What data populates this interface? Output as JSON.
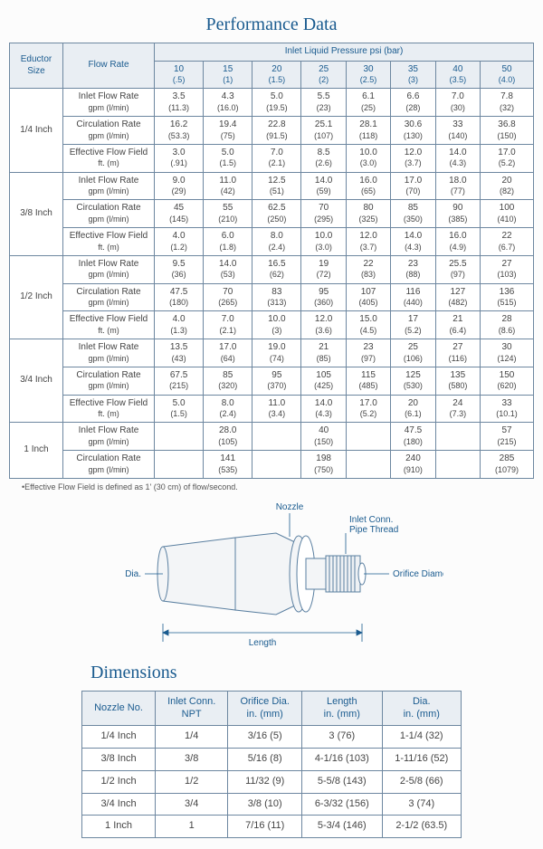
{
  "titles": {
    "performance": "Performance Data",
    "dimensions": "Dimensions"
  },
  "perf": {
    "col_headers": {
      "size": "Eductor\nSize",
      "flow": "Flow Rate",
      "pressure_group": "Inlet Liquid Pressure psi (bar)",
      "cols": [
        {
          "a": "10",
          "b": "(.5)"
        },
        {
          "a": "15",
          "b": "(1)"
        },
        {
          "a": "20",
          "b": "(1.5)"
        },
        {
          "a": "25",
          "b": "(2)"
        },
        {
          "a": "30",
          "b": "(2.5)"
        },
        {
          "a": "35",
          "b": "(3)"
        },
        {
          "a": "40",
          "b": "(3.5)"
        },
        {
          "a": "50",
          "b": "(4.0)"
        }
      ]
    },
    "row_labels": {
      "inlet": "Inlet Flow Rate",
      "inlet_sub": "gpm (l/min)",
      "circ": "Circulation Rate",
      "circ_sub": "gpm (l/min)",
      "eff": "Effective Flow Field",
      "eff_sub": "ft. (m)"
    },
    "groups": [
      {
        "size": "1/4 Inch",
        "inlet": [
          [
            "3.5",
            "(11.3)"
          ],
          [
            "4.3",
            "(16.0)"
          ],
          [
            "5.0",
            "(19.5)"
          ],
          [
            "5.5",
            "(23)"
          ],
          [
            "6.1",
            "(25)"
          ],
          [
            "6.6",
            "(28)"
          ],
          [
            "7.0",
            "(30)"
          ],
          [
            "7.8",
            "(32)"
          ]
        ],
        "circ": [
          [
            "16.2",
            "(53.3)"
          ],
          [
            "19.4",
            "(75)"
          ],
          [
            "22.8",
            "(91.5)"
          ],
          [
            "25.1",
            "(107)"
          ],
          [
            "28.1",
            "(118)"
          ],
          [
            "30.6",
            "(130)"
          ],
          [
            "33",
            "(140)"
          ],
          [
            "36.8",
            "(150)"
          ]
        ],
        "eff": [
          [
            "3.0",
            "(.91)"
          ],
          [
            "5.0",
            "(1.5)"
          ],
          [
            "7.0",
            "(2.1)"
          ],
          [
            "8.5",
            "(2.6)"
          ],
          [
            "10.0",
            "(3.0)"
          ],
          [
            "12.0",
            "(3.7)"
          ],
          [
            "14.0",
            "(4.3)"
          ],
          [
            "17.0",
            "(5.2)"
          ]
        ]
      },
      {
        "size": "3/8 Inch",
        "inlet": [
          [
            "9.0",
            "(29)"
          ],
          [
            "11.0",
            "(42)"
          ],
          [
            "12.5",
            "(51)"
          ],
          [
            "14.0",
            "(59)"
          ],
          [
            "16.0",
            "(65)"
          ],
          [
            "17.0",
            "(70)"
          ],
          [
            "18.0",
            "(77)"
          ],
          [
            "20",
            "(82)"
          ]
        ],
        "circ": [
          [
            "45",
            "(145)"
          ],
          [
            "55",
            "(210)"
          ],
          [
            "62.5",
            "(250)"
          ],
          [
            "70",
            "(295)"
          ],
          [
            "80",
            "(325)"
          ],
          [
            "85",
            "(350)"
          ],
          [
            "90",
            "(385)"
          ],
          [
            "100",
            "(410)"
          ]
        ],
        "eff": [
          [
            "4.0",
            "(1.2)"
          ],
          [
            "6.0",
            "(1.8)"
          ],
          [
            "8.0",
            "(2.4)"
          ],
          [
            "10.0",
            "(3.0)"
          ],
          [
            "12.0",
            "(3.7)"
          ],
          [
            "14.0",
            "(4.3)"
          ],
          [
            "16.0",
            "(4.9)"
          ],
          [
            "22",
            "(6.7)"
          ]
        ]
      },
      {
        "size": "1/2 Inch",
        "inlet": [
          [
            "9.5",
            "(36)"
          ],
          [
            "14.0",
            "(53)"
          ],
          [
            "16.5",
            "(62)"
          ],
          [
            "19",
            "(72)"
          ],
          [
            "22",
            "(83)"
          ],
          [
            "23",
            "(88)"
          ],
          [
            "25.5",
            "(97)"
          ],
          [
            "27",
            "(103)"
          ]
        ],
        "circ": [
          [
            "47.5",
            "(180)"
          ],
          [
            "70",
            "(265)"
          ],
          [
            "83",
            "(313)"
          ],
          [
            "95",
            "(360)"
          ],
          [
            "107",
            "(405)"
          ],
          [
            "116",
            "(440)"
          ],
          [
            "127",
            "(482)"
          ],
          [
            "136",
            "(515)"
          ]
        ],
        "eff": [
          [
            "4.0",
            "(1.3)"
          ],
          [
            "7.0",
            "(2.1)"
          ],
          [
            "10.0",
            "(3)"
          ],
          [
            "12.0",
            "(3.6)"
          ],
          [
            "15.0",
            "(4.5)"
          ],
          [
            "17",
            "(5.2)"
          ],
          [
            "21",
            "(6.4)"
          ],
          [
            "28",
            "(8.6)"
          ]
        ]
      },
      {
        "size": "3/4 Inch",
        "inlet": [
          [
            "13.5",
            "(43)"
          ],
          [
            "17.0",
            "(64)"
          ],
          [
            "19.0",
            "(74)"
          ],
          [
            "21",
            "(85)"
          ],
          [
            "23",
            "(97)"
          ],
          [
            "25",
            "(106)"
          ],
          [
            "27",
            "(116)"
          ],
          [
            "30",
            "(124)"
          ]
        ],
        "circ": [
          [
            "67.5",
            "(215)"
          ],
          [
            "85",
            "(320)"
          ],
          [
            "95",
            "(370)"
          ],
          [
            "105",
            "(425)"
          ],
          [
            "115",
            "(485)"
          ],
          [
            "125",
            "(530)"
          ],
          [
            "135",
            "(580)"
          ],
          [
            "150",
            "(620)"
          ]
        ],
        "eff": [
          [
            "5.0",
            "(1.5)"
          ],
          [
            "8.0",
            "(2.4)"
          ],
          [
            "11.0",
            "(3.4)"
          ],
          [
            "14.0",
            "(4.3)"
          ],
          [
            "17.0",
            "(5.2)"
          ],
          [
            "20",
            "(6.1)"
          ],
          [
            "24",
            "(7.3)"
          ],
          [
            "33",
            "(10.1)"
          ]
        ]
      }
    ],
    "one_inch": {
      "size": "1 Inch",
      "inlet": [
        [
          "",
          ""
        ],
        [
          "28.0",
          "(105)"
        ],
        [
          "",
          ""
        ],
        [
          "40",
          "(150)"
        ],
        [
          "",
          ""
        ],
        [
          "47.5",
          "(180)"
        ],
        [
          "",
          ""
        ],
        [
          "57",
          "(215)"
        ]
      ],
      "circ": [
        [
          "",
          ""
        ],
        [
          "141",
          "(535)"
        ],
        [
          "",
          ""
        ],
        [
          "198",
          "(750)"
        ],
        [
          "",
          ""
        ],
        [
          "240",
          "(910)"
        ],
        [
          "",
          ""
        ],
        [
          "285",
          "(1079)"
        ]
      ]
    },
    "footnote": "•Effective Flow Field is defined as 1' (30 cm) of flow/second."
  },
  "diagram": {
    "labels": {
      "nozzle": "Nozzle",
      "inlet_conn": "Inlet Conn.\nPipe Thread",
      "orifice": "Orifice Diameter",
      "dia": "Dia.",
      "length": "Length"
    },
    "colors": {
      "line": "#5a7fa0",
      "leader": "#1a5b8f",
      "fill": "#f3f5f7"
    }
  },
  "dim": {
    "headers": [
      "Nozzle No.",
      "Inlet Conn.\nNPT",
      "Orifice Dia.\nin. (mm)",
      "Length\nin. (mm)",
      "Dia.\nin. (mm)"
    ],
    "rows": [
      [
        "1/4 Inch",
        "1/4",
        "3/16 (5)",
        "3 (76)",
        "1-1/4 (32)"
      ],
      [
        "3/8 Inch",
        "3/8",
        "5/16 (8)",
        "4-1/16 (103)",
        "1-11/16 (52)"
      ],
      [
        "1/2 Inch",
        "1/2",
        "11/32 (9)",
        "5-5/8 (143)",
        "2-5/8 (66)"
      ],
      [
        "3/4 Inch",
        "3/4",
        "3/8 (10)",
        "6-3/32 (156)",
        "3 (74)"
      ],
      [
        "1 Inch",
        "1",
        "7/16 (11)",
        "5-3/4 (146)",
        "2-1/2 (63.5)"
      ]
    ]
  }
}
